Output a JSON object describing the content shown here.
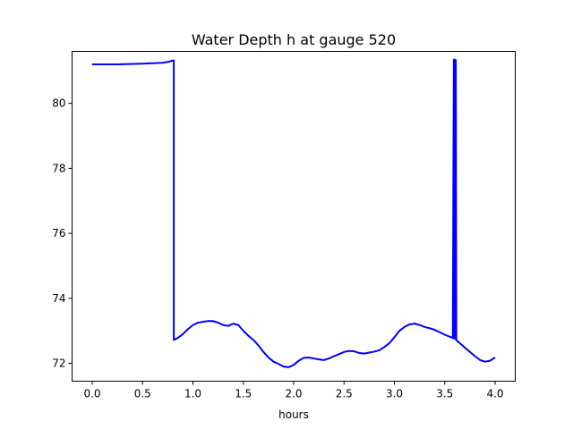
{
  "chart_data": {
    "type": "line",
    "title": "Water Depth h at gauge 520",
    "xlabel": "hours",
    "ylabel": "",
    "xlim": [
      -0.2,
      4.2
    ],
    "ylim": [
      71.45,
      81.6
    ],
    "xticks": [
      0.0,
      0.5,
      1.0,
      1.5,
      2.0,
      2.5,
      3.0,
      3.5,
      4.0
    ],
    "xtick_labels": [
      "0.0",
      "0.5",
      "1.0",
      "1.5",
      "2.0",
      "2.5",
      "3.0",
      "3.5",
      "4.0"
    ],
    "yticks": [
      72,
      74,
      76,
      78,
      80
    ],
    "ytick_labels": [
      "72",
      "74",
      "76",
      "78",
      "80"
    ],
    "grid": false,
    "series": [
      {
        "color": "#0000ff",
        "x": [
          0.0,
          0.25,
          0.5,
          0.7,
          0.76,
          0.8,
          0.81,
          0.81,
          0.85,
          0.9,
          0.95,
          1.0,
          1.05,
          1.1,
          1.15,
          1.2,
          1.25,
          1.3,
          1.35,
          1.4,
          1.45,
          1.5,
          1.55,
          1.6,
          1.65,
          1.7,
          1.75,
          1.8,
          1.85,
          1.9,
          1.95,
          2.0,
          2.05,
          2.1,
          2.15,
          2.2,
          2.25,
          2.3,
          2.35,
          2.4,
          2.45,
          2.5,
          2.55,
          2.6,
          2.65,
          2.7,
          2.75,
          2.8,
          2.85,
          2.9,
          2.95,
          3.0,
          3.05,
          3.1,
          3.15,
          3.2,
          3.25,
          3.3,
          3.35,
          3.4,
          3.45,
          3.5,
          3.55,
          3.58,
          3.59,
          3.595,
          3.6,
          3.605,
          3.61,
          3.615,
          3.62,
          3.65,
          3.7,
          3.75,
          3.8,
          3.85,
          3.9,
          3.95,
          4.0
        ],
        "y": [
          81.2,
          81.2,
          81.22,
          81.25,
          81.28,
          81.32,
          81.32,
          72.72,
          72.78,
          72.9,
          73.05,
          73.18,
          73.25,
          73.28,
          73.3,
          73.3,
          73.25,
          73.18,
          73.15,
          73.22,
          73.18,
          73.0,
          72.85,
          72.72,
          72.55,
          72.35,
          72.18,
          72.05,
          71.98,
          71.9,
          71.88,
          71.95,
          72.08,
          72.17,
          72.18,
          72.15,
          72.12,
          72.1,
          72.15,
          72.22,
          72.28,
          72.35,
          72.38,
          72.37,
          72.32,
          72.3,
          72.33,
          72.36,
          72.4,
          72.5,
          72.62,
          72.8,
          73.0,
          73.12,
          73.2,
          73.22,
          73.18,
          73.12,
          73.08,
          73.03,
          72.96,
          72.88,
          72.82,
          72.78,
          81.35,
          72.76,
          81.35,
          72.75,
          81.33,
          72.72,
          72.7,
          72.62,
          72.48,
          72.35,
          72.22,
          72.1,
          72.05,
          72.08,
          72.18
        ]
      }
    ]
  }
}
